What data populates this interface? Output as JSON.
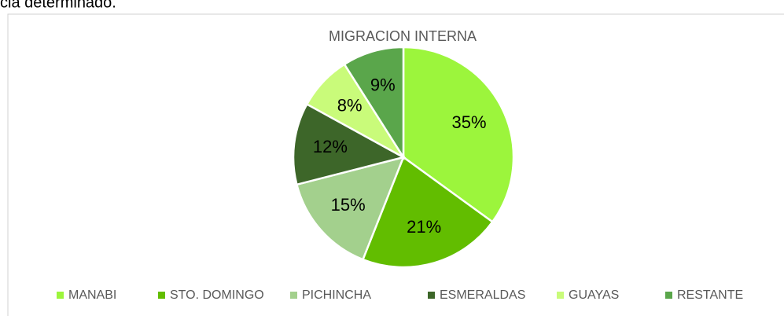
{
  "page_text": "cia determinado.",
  "chart_data": {
    "type": "pie",
    "title": "MIGRACION INTERNA",
    "categories": [
      "MANABI",
      "STO. DOMINGO",
      "PICHINCHA",
      "ESMERALDAS",
      "GUAYAS",
      "RESTANTE"
    ],
    "values": [
      35,
      21,
      15,
      12,
      8,
      9
    ],
    "value_labels": [
      "35%",
      "21%",
      "15%",
      "12%",
      "8%",
      "9%"
    ],
    "colors": [
      "#9cf53c",
      "#62bd00",
      "#a3d08d",
      "#3d6629",
      "#c9fb7a",
      "#5aa64b"
    ],
    "legend": "bottom"
  }
}
